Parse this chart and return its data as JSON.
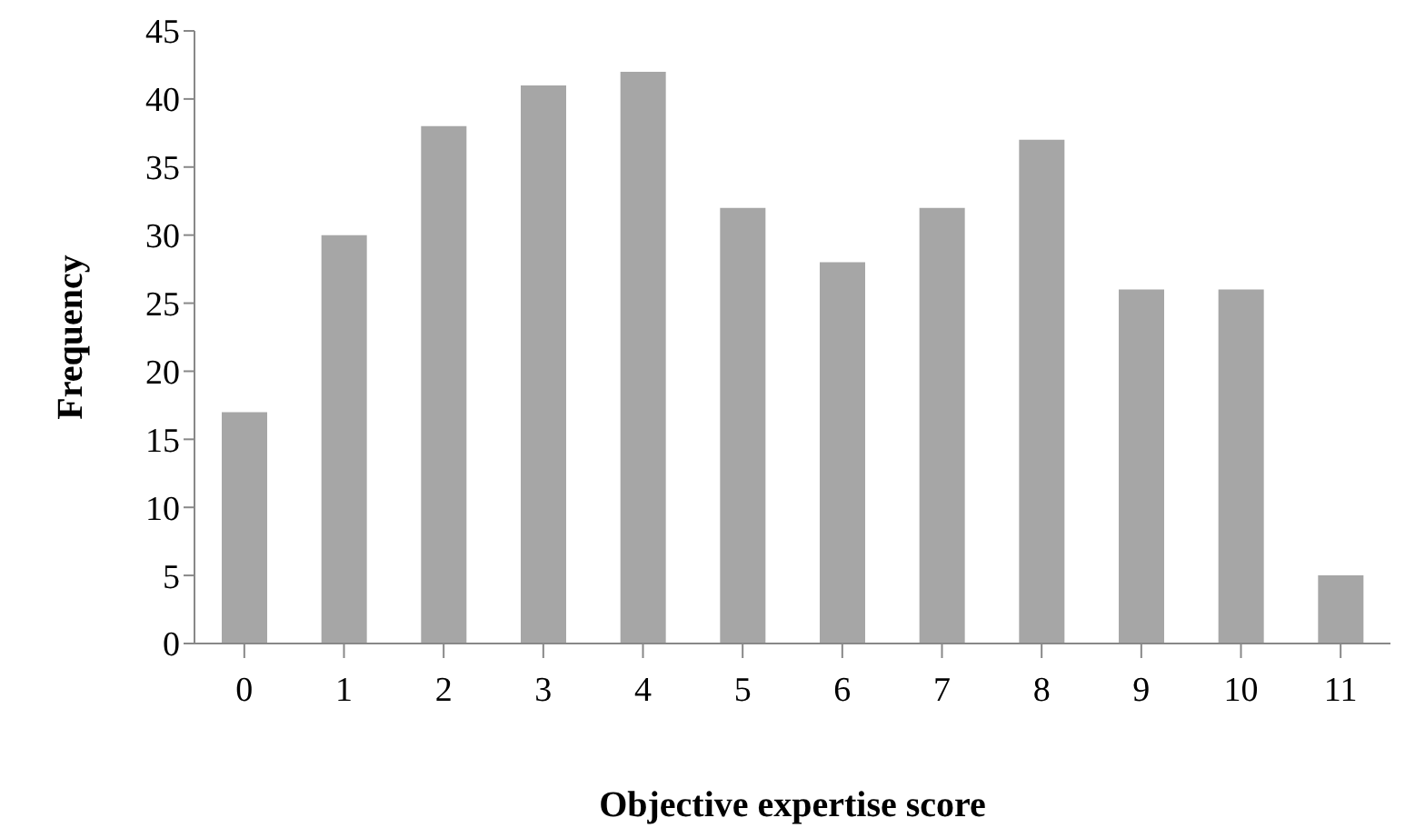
{
  "chart_data": {
    "type": "bar",
    "xlabel": "Objective expertise score",
    "ylabel": "Frequency",
    "categories": [
      "0",
      "1",
      "2",
      "3",
      "4",
      "5",
      "6",
      "7",
      "8",
      "9",
      "10",
      "11"
    ],
    "values": [
      17,
      30,
      38,
      41,
      42,
      32,
      28,
      32,
      37,
      26,
      26,
      5
    ],
    "color": "#a6a6a6",
    "ylim": [
      0,
      45
    ],
    "yticks": [
      0,
      5,
      10,
      15,
      20,
      25,
      30,
      35,
      40,
      45
    ],
    "grid": false,
    "legend": false
  }
}
